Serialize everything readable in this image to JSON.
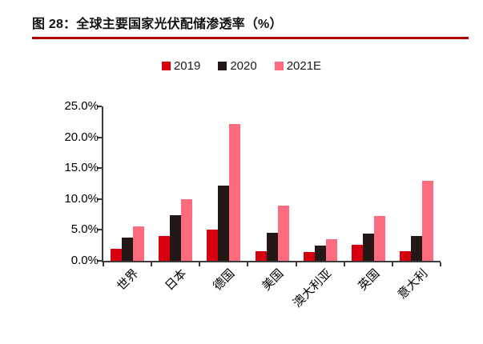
{
  "title": "图 28：全球主要国家光伏配储渗透率（%）",
  "colors": {
    "title_text": "#111111",
    "title_rule": "#B00000",
    "axis": "#3C3C3C",
    "label_text": "#000000",
    "series_2019": "#D7000F",
    "series_2020": "#231815",
    "series_2021E": "#FC6C7E"
  },
  "chart_data": {
    "type": "bar",
    "title": "图 28：全球主要国家光伏配储渗透率（%）",
    "categories": [
      "世界",
      "日本",
      "德国",
      "美国",
      "澳大利亚",
      "英国",
      "意大利"
    ],
    "series": [
      {
        "name": "2019",
        "color": "#D7000F",
        "values": [
          2.0,
          4.0,
          5.1,
          1.5,
          1.4,
          2.6,
          1.5
        ]
      },
      {
        "name": "2020",
        "color": "#231815",
        "values": [
          3.7,
          7.4,
          12.2,
          4.6,
          2.5,
          4.4,
          4.0
        ]
      },
      {
        "name": "2021E",
        "color": "#FC6C7E",
        "values": [
          5.6,
          10.0,
          22.2,
          9.0,
          3.5,
          7.3,
          13.0
        ]
      }
    ],
    "xlabel": "",
    "ylabel": "",
    "ylim": [
      0,
      25
    ],
    "ytick_step": 5,
    "ytick_labels": [
      "0.0%",
      "5.0%",
      "10.0%",
      "15.0%",
      "20.0%",
      "25.0%"
    ],
    "grid": false,
    "legend_position": "top-center"
  }
}
